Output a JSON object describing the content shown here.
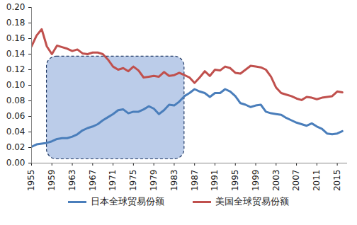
{
  "chart_data": {
    "type": "line",
    "x": [
      1955,
      1956,
      1957,
      1958,
      1959,
      1960,
      1961,
      1962,
      1963,
      1964,
      1965,
      1966,
      1967,
      1968,
      1969,
      1970,
      1971,
      1972,
      1973,
      1974,
      1975,
      1976,
      1977,
      1978,
      1979,
      1980,
      1981,
      1982,
      1983,
      1984,
      1985,
      1986,
      1987,
      1988,
      1989,
      1990,
      1991,
      1992,
      1993,
      1994,
      1995,
      1996,
      1997,
      1998,
      1999,
      2000,
      2001,
      2002,
      2003,
      2004,
      2005,
      2006,
      2007,
      2008,
      2009,
      2010,
      2011,
      2012,
      2013,
      2014,
      2015,
      2016
    ],
    "series": [
      {
        "name": "日本全球贸易份额",
        "color": "#4a7ebb",
        "values": [
          0.021,
          0.024,
          0.025,
          0.026,
          0.028,
          0.031,
          0.032,
          0.032,
          0.034,
          0.037,
          0.042,
          0.045,
          0.047,
          0.05,
          0.055,
          0.059,
          0.063,
          0.068,
          0.069,
          0.064,
          0.066,
          0.066,
          0.069,
          0.073,
          0.07,
          0.063,
          0.068,
          0.075,
          0.074,
          0.079,
          0.086,
          0.09,
          0.095,
          0.092,
          0.09,
          0.085,
          0.09,
          0.09,
          0.095,
          0.092,
          0.086,
          0.077,
          0.075,
          0.072,
          0.074,
          0.075,
          0.066,
          0.064,
          0.063,
          0.062,
          0.058,
          0.055,
          0.052,
          0.05,
          0.048,
          0.051,
          0.047,
          0.044,
          0.038,
          0.037,
          0.038,
          0.041
        ]
      },
      {
        "name": "美国全球贸易份额",
        "color": "#c0504d",
        "values": [
          0.15,
          0.164,
          0.172,
          0.15,
          0.14,
          0.151,
          0.149,
          0.147,
          0.144,
          0.146,
          0.141,
          0.14,
          0.142,
          0.142,
          0.14,
          0.133,
          0.124,
          0.12,
          0.122,
          0.118,
          0.124,
          0.119,
          0.11,
          0.111,
          0.112,
          0.111,
          0.117,
          0.112,
          0.113,
          0.116,
          0.113,
          0.11,
          0.103,
          0.11,
          0.118,
          0.112,
          0.12,
          0.119,
          0.124,
          0.122,
          0.116,
          0.115,
          0.12,
          0.125,
          0.124,
          0.123,
          0.12,
          0.111,
          0.097,
          0.09,
          0.088,
          0.086,
          0.083,
          0.081,
          0.085,
          0.084,
          0.082,
          0.084,
          0.085,
          0.086,
          0.092,
          0.091
        ]
      }
    ],
    "highlight": {
      "x": [
        1958,
        1985
      ],
      "y": [
        0.005,
        0.137
      ],
      "color": "#b4c7e7"
    },
    "xlim": [
      1955,
      2017
    ],
    "xticks": [
      1955,
      1959,
      1963,
      1967,
      1971,
      1975,
      1979,
      1983,
      1987,
      1991,
      1995,
      1999,
      2003,
      2007,
      2011,
      2015
    ],
    "ylim": [
      0,
      0.2
    ],
    "yticks": [
      {
        "value": 0,
        "label": "0.00"
      },
      0.02,
      0.04,
      0.06,
      0.08,
      {
        "value": 0.1,
        "label": "0.10"
      },
      0.12,
      0.14,
      0.16,
      0.18,
      {
        "value": 0.2,
        "label": "0.20"
      }
    ],
    "grid": false,
    "legend": "bottom"
  }
}
